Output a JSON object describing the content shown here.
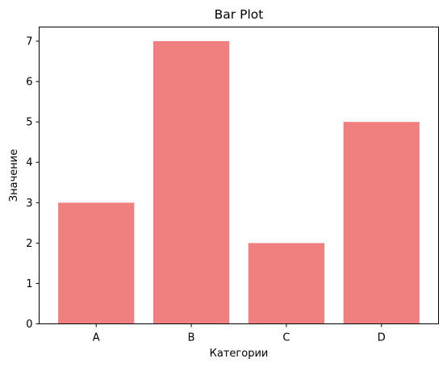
{
  "chart_data": {
    "type": "bar",
    "title": "Bar Plot",
    "xlabel": "Категории",
    "ylabel": "Значение",
    "categories": [
      "A",
      "B",
      "C",
      "D"
    ],
    "values": [
      3,
      7,
      2,
      5
    ],
    "ylim": [
      0,
      7.35
    ],
    "yticks": [
      "0",
      "1",
      "2",
      "3",
      "4",
      "5",
      "6",
      "7"
    ],
    "bar_color": "#f08080",
    "grid": false,
    "legend": "none"
  }
}
